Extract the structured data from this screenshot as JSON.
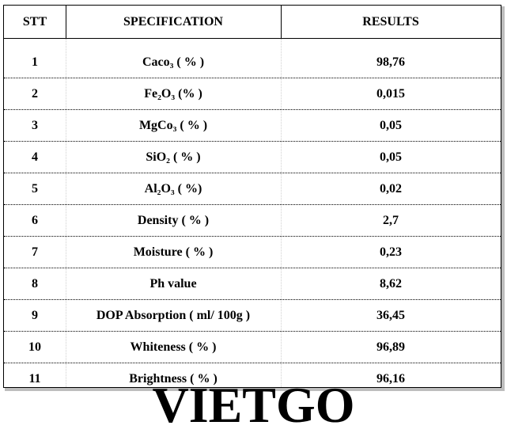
{
  "table": {
    "headers": {
      "stt": "STT",
      "specification": "SPECIFICATION",
      "results": "RESULTS"
    },
    "rows": [
      {
        "stt": "1",
        "spec": "Caco₃ ( % )",
        "result": "98,76"
      },
      {
        "stt": "2",
        "spec": "Fe₂O₃ (% )",
        "result": "0,015"
      },
      {
        "stt": "3",
        "spec": "MgCo₃ ( % )",
        "result": "0,05"
      },
      {
        "stt": "4",
        "spec": "SiO₂ ( % )",
        "result": "0,05"
      },
      {
        "stt": "5",
        "spec": "Al₂O₃ ( %)",
        "result": "0,02"
      },
      {
        "stt": "6",
        "spec": "Density ( % )",
        "result": "2,7"
      },
      {
        "stt": "7",
        "spec": "Moisture ( % )",
        "result": "0,23"
      },
      {
        "stt": "8",
        "spec": "Ph value",
        "result": "8,62"
      },
      {
        "stt": "9",
        "spec": "DOP Absorption ( ml/ 100g )",
        "result": "36,45"
      },
      {
        "stt": "10",
        "spec": "Whiteness ( % )",
        "result": "96,89"
      },
      {
        "stt": "11",
        "spec": "Brightness ( % )",
        "result": "96,16"
      }
    ]
  },
  "watermark": {
    "text": "VIETGO"
  }
}
